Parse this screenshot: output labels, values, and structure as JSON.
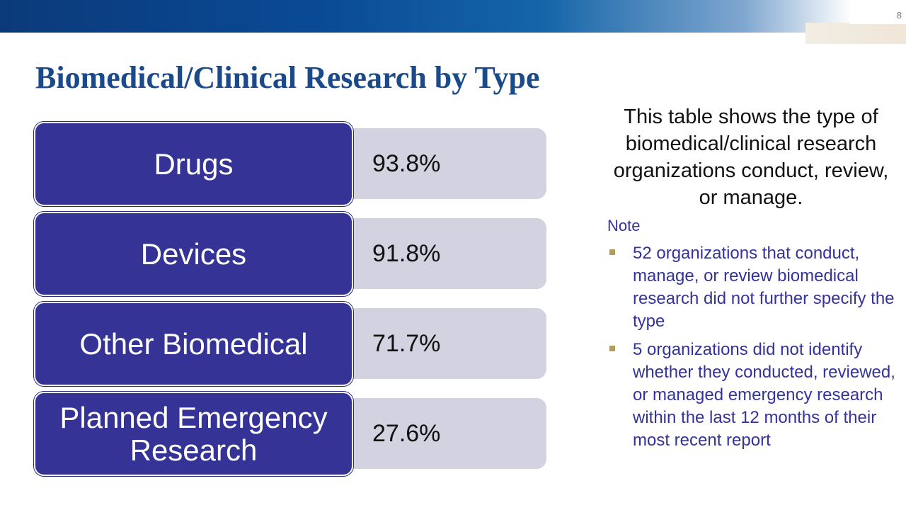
{
  "slide": {
    "page_number": "8",
    "title": "Biomedical/Clinical Research by Type"
  },
  "table": {
    "rows": [
      {
        "label": "Drugs",
        "value": "93.8%"
      },
      {
        "label": "Devices",
        "value": "91.8%"
      },
      {
        "label": "Other Biomedical",
        "value": "71.7%"
      },
      {
        "label": "Planned Emergency Research",
        "value": "27.6%"
      }
    ]
  },
  "sidebar": {
    "description": "This table shows the type of biomedical/clinical research organizations conduct, review, or manage.",
    "note_heading": "Note",
    "notes": [
      "52 organizations that conduct, manage, or review biomedical research did not further specify the type",
      "5 organizations did not identify whether they conducted, reviewed, or managed emergency research within the last 12 months of their most recent report"
    ]
  },
  "colors": {
    "label_fill": "#353496",
    "value_fill": "#d3d2e0",
    "title": "#1b4a8a",
    "note_text": "#34339a",
    "bullet": "#b59a5a"
  }
}
